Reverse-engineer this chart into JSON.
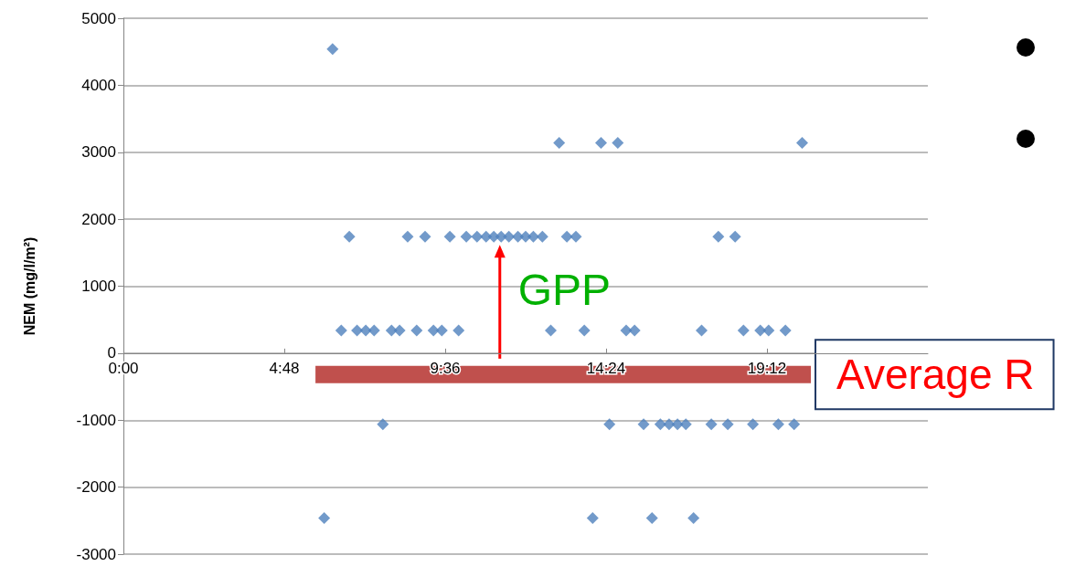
{
  "chart_data": {
    "type": "scatter",
    "ylabel": "NEM (mg/l/m²)",
    "xlim": [
      0,
      24
    ],
    "xticks": [
      {
        "value": 0,
        "label": "0:00"
      },
      {
        "value": 4.8,
        "label": "4:48"
      },
      {
        "value": 9.6,
        "label": "9:36"
      },
      {
        "value": 14.4,
        "label": "14:24"
      },
      {
        "value": 19.2,
        "label": "19:12"
      }
    ],
    "ylim": [
      -3000,
      5000
    ],
    "yticks": [
      -3000,
      -2000,
      -1000,
      0,
      1000,
      2000,
      3000,
      4000,
      5000
    ],
    "grid": "y",
    "legend": false,
    "marker": "diamond",
    "annotations": [
      {
        "text": "GPP",
        "x": 11.23,
        "y": 1740
      }
    ],
    "series": [
      {
        "color": "#4f81bd",
        "x": [
          6.24,
          6.74,
          8.48,
          9.0,
          9.74,
          10.23,
          10.55,
          10.82,
          11.05,
          11.27,
          11.5,
          11.77,
          12.0,
          12.23,
          12.5,
          13.23,
          13.5,
          17.75,
          18.25,
          6.5,
          6.97,
          7.23,
          7.48,
          8.0,
          8.24,
          8.75,
          9.25,
          9.5,
          10.0,
          12.75,
          13.75,
          15.0,
          15.25,
          17.25,
          18.5,
          19.0,
          19.25,
          19.75,
          13.0,
          14.25,
          14.75,
          20.25,
          7.74,
          14.5,
          15.52,
          16.02,
          16.28,
          16.53,
          16.78,
          17.54,
          18.03,
          18.78,
          19.54,
          20.01,
          5.99,
          14.0,
          15.77,
          17.01
        ],
        "values": [
          4540,
          1740,
          1740,
          1740,
          1740,
          1740,
          1740,
          1740,
          1740,
          1740,
          1740,
          1740,
          1740,
          1740,
          1740,
          1740,
          1740,
          1740,
          1740,
          340,
          340,
          340,
          340,
          340,
          340,
          340,
          340,
          340,
          340,
          340,
          340,
          340,
          340,
          340,
          340,
          340,
          340,
          340,
          3140,
          3140,
          3140,
          3140,
          -1060,
          -1060,
          -1060,
          -1060,
          -1060,
          -1060,
          -1060,
          -1060,
          -1060,
          -1060,
          -1060,
          -1060,
          -2460,
          -2460,
          -2460,
          -2460
        ]
      },
      {
        "type": "line",
        "name": "Average R",
        "color": "#c0504d",
        "line_style": "solid",
        "marker": "none",
        "x": [
          5.73,
          20.51
        ],
        "values": [
          -320,
          -320
        ]
      }
    ]
  }
}
